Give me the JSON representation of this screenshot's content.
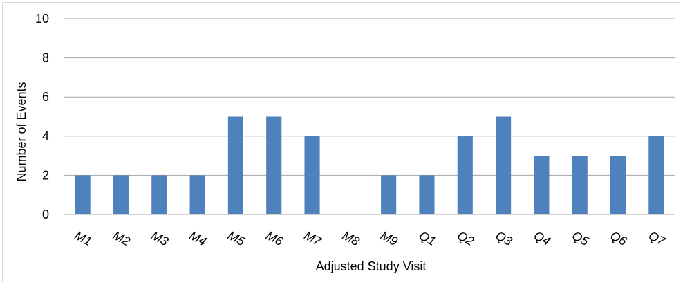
{
  "chart_data": {
    "type": "bar",
    "title": "",
    "xlabel": "Adjusted Study Visit",
    "ylabel": "Number of Events",
    "categories": [
      "M1",
      "M2",
      "M3",
      "M4",
      "M5",
      "M6",
      "M7",
      "M8",
      "M9",
      "Q1",
      "Q2",
      "Q3",
      "Q4",
      "Q5",
      "Q6",
      "Q7"
    ],
    "values": [
      2,
      2,
      2,
      2,
      5,
      5,
      4,
      0,
      2,
      2,
      4,
      5,
      3,
      3,
      3,
      4
    ],
    "ylim": [
      0,
      10
    ],
    "yticks": [
      0,
      2,
      4,
      6,
      8,
      10
    ],
    "grid": true,
    "legend": "none",
    "bar_color": "#4f81bd",
    "grid_color": "#a6a6a6"
  }
}
